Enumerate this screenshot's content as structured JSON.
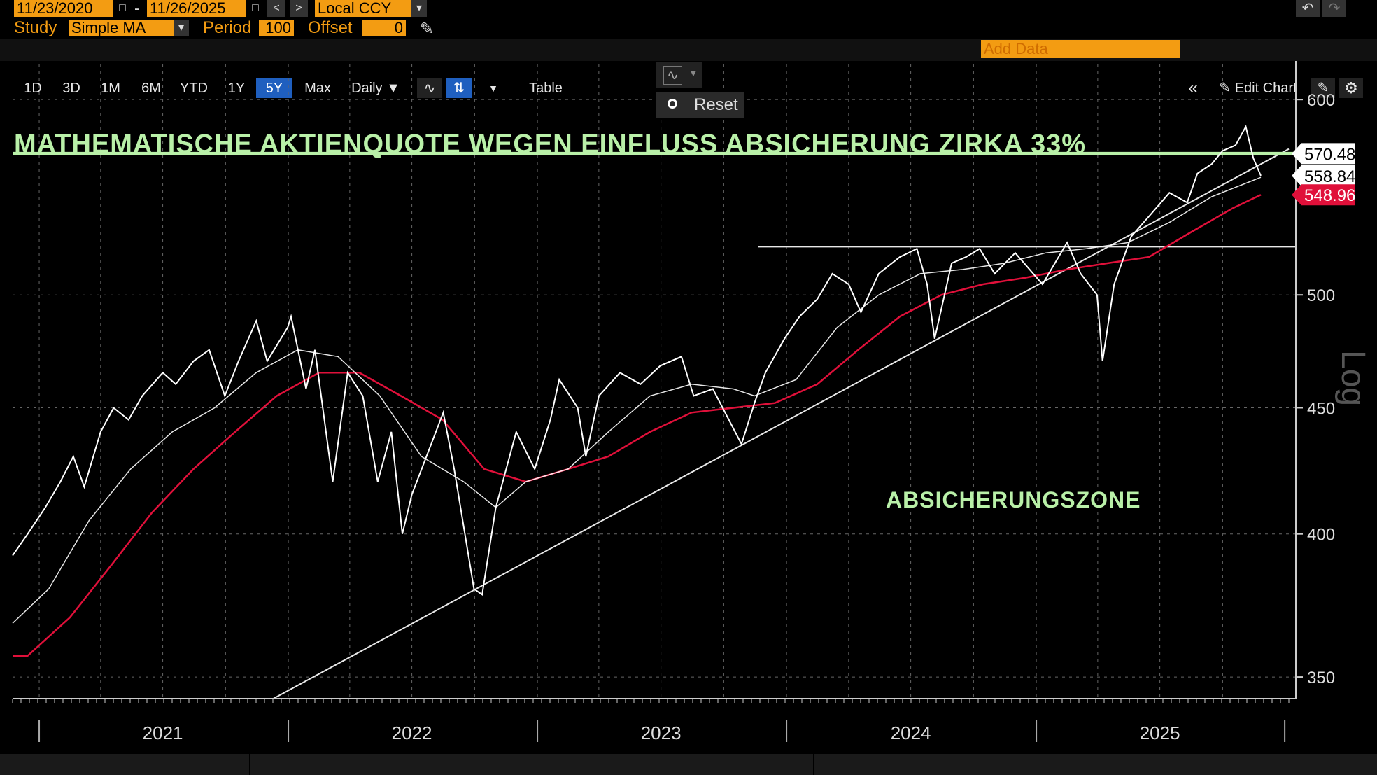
{
  "toolbar_row1": {
    "start_date": "11/23/2020",
    "separator": "-",
    "end_date": "11/26/2025",
    "prev_label": "<",
    "next_label": ">",
    "currency": "Local CCY"
  },
  "toolbar_row2": {
    "study_label": "Study",
    "study_value": "Simple MA",
    "period_label": "Period",
    "period_value": "100",
    "offset_label": "Offset",
    "offset_value": "0"
  },
  "toolbar_row3": {
    "ranges": [
      "1D",
      "3D",
      "1M",
      "6M",
      "YTD",
      "1Y",
      "5Y",
      "Max"
    ],
    "active_range": "5Y",
    "frequency": "Daily",
    "table_label": "Table",
    "add_data_placeholder": "Add Data",
    "edit_chart_label": "Edit Chart"
  },
  "chart_overlay": {
    "reset_label": "Reset",
    "headline": "MATHEMATISCHE AKTIENQUOTE WEGEN EINFLUSS ABSICHERUNG ZIRKA 33%",
    "zone_label": "ABSICHERUNGSZONE",
    "scale_label": "Log"
  },
  "colors": {
    "price": "#ffffff",
    "ma_100": "#ffffff",
    "ma_red": "#e0103a",
    "headline": "#b9f0a8",
    "orange": "#f39c12",
    "active_blue": "#1f5fbf"
  },
  "chart_data": {
    "type": "line",
    "scale": "log",
    "ylim": [
      343,
      620
    ],
    "y_ticks": [
      350,
      400,
      450,
      500,
      600
    ],
    "x_range": [
      "2020-11-23",
      "2025-11-26"
    ],
    "x_ticks": [
      "2021",
      "2022",
      "2023",
      "2024",
      "2025"
    ],
    "last_values": [
      {
        "value": "570.48",
        "color": "#ffffff"
      },
      {
        "value": "558.84",
        "color": "#ffffff"
      },
      {
        "value": "548.96",
        "color": "#e0103a"
      }
    ],
    "price": [
      [
        "2020-11-23",
        392
      ],
      [
        "2020-12-15",
        400
      ],
      [
        "2021-01-10",
        410
      ],
      [
        "2021-02-01",
        420
      ],
      [
        "2021-02-20",
        430
      ],
      [
        "2021-03-08",
        418
      ],
      [
        "2021-04-01",
        440
      ],
      [
        "2021-04-20",
        450
      ],
      [
        "2021-05-12",
        445
      ],
      [
        "2021-06-01",
        455
      ],
      [
        "2021-07-01",
        465
      ],
      [
        "2021-07-20",
        460
      ],
      [
        "2021-08-15",
        470
      ],
      [
        "2021-09-07",
        475
      ],
      [
        "2021-09-30",
        455
      ],
      [
        "2021-10-20",
        470
      ],
      [
        "2021-11-15",
        488
      ],
      [
        "2021-12-01",
        470
      ],
      [
        "2021-12-31",
        485
      ],
      [
        "2022-01-05",
        490
      ],
      [
        "2022-01-27",
        458
      ],
      [
        "2022-02-09",
        475
      ],
      [
        "2022-03-07",
        420
      ],
      [
        "2022-03-29",
        465
      ],
      [
        "2022-04-20",
        455
      ],
      [
        "2022-05-12",
        420
      ],
      [
        "2022-06-01",
        440
      ],
      [
        "2022-06-17",
        400
      ],
      [
        "2022-07-01",
        415
      ],
      [
        "2022-08-16",
        448
      ],
      [
        "2022-09-01",
        425
      ],
      [
        "2022-09-30",
        380
      ],
      [
        "2022-10-12",
        378
      ],
      [
        "2022-11-01",
        410
      ],
      [
        "2022-12-01",
        440
      ],
      [
        "2022-12-28",
        425
      ],
      [
        "2023-01-20",
        445
      ],
      [
        "2023-02-02",
        462
      ],
      [
        "2023-03-01",
        450
      ],
      [
        "2023-03-13",
        430
      ],
      [
        "2023-04-01",
        455
      ],
      [
        "2023-05-02",
        465
      ],
      [
        "2023-06-01",
        460
      ],
      [
        "2023-06-30",
        468
      ],
      [
        "2023-07-31",
        472
      ],
      [
        "2023-08-18",
        455
      ],
      [
        "2023-09-15",
        458
      ],
      [
        "2023-10-27",
        435
      ],
      [
        "2023-11-15",
        452
      ],
      [
        "2023-12-01",
        465
      ],
      [
        "2023-12-29",
        480
      ],
      [
        "2024-01-20",
        490
      ],
      [
        "2024-02-15",
        498
      ],
      [
        "2024-03-08",
        510
      ],
      [
        "2024-04-01",
        505
      ],
      [
        "2024-04-19",
        492
      ],
      [
        "2024-05-15",
        510
      ],
      [
        "2024-06-15",
        518
      ],
      [
        "2024-07-10",
        522
      ],
      [
        "2024-07-25",
        505
      ],
      [
        "2024-08-05",
        480
      ],
      [
        "2024-08-30",
        515
      ],
      [
        "2024-09-20",
        518
      ],
      [
        "2024-10-10",
        522
      ],
      [
        "2024-11-01",
        510
      ],
      [
        "2024-12-01",
        520
      ],
      [
        "2025-01-10",
        505
      ],
      [
        "2025-02-15",
        525
      ],
      [
        "2025-03-07",
        510
      ],
      [
        "2025-03-31",
        500
      ],
      [
        "2025-04-08",
        470
      ],
      [
        "2025-04-25",
        505
      ],
      [
        "2025-05-20",
        528
      ],
      [
        "2025-06-15",
        538
      ],
      [
        "2025-07-15",
        550
      ],
      [
        "2025-08-10",
        545
      ],
      [
        "2025-08-25",
        560
      ],
      [
        "2025-09-15",
        565
      ],
      [
        "2025-10-01",
        572
      ],
      [
        "2025-10-20",
        575
      ],
      [
        "2025-11-04",
        585
      ],
      [
        "2025-11-15",
        568
      ],
      [
        "2025-11-26",
        558.84
      ]
    ],
    "ma_white": [
      [
        "2020-11-23",
        368
      ],
      [
        "2021-01-15",
        380
      ],
      [
        "2021-03-15",
        405
      ],
      [
        "2021-05-15",
        425
      ],
      [
        "2021-07-15",
        440
      ],
      [
        "2021-09-15",
        450
      ],
      [
        "2021-11-15",
        465
      ],
      [
        "2022-01-15",
        475
      ],
      [
        "2022-03-15",
        472
      ],
      [
        "2022-05-15",
        455
      ],
      [
        "2022-07-15",
        430
      ],
      [
        "2022-09-15",
        420
      ],
      [
        "2022-11-01",
        410
      ],
      [
        "2022-12-15",
        420
      ],
      [
        "2023-02-15",
        425
      ],
      [
        "2023-04-15",
        440
      ],
      [
        "2023-06-15",
        455
      ],
      [
        "2023-08-15",
        460
      ],
      [
        "2023-10-15",
        458
      ],
      [
        "2023-11-15",
        455
      ],
      [
        "2024-01-15",
        462
      ],
      [
        "2024-03-15",
        485
      ],
      [
        "2024-05-15",
        500
      ],
      [
        "2024-07-15",
        510
      ],
      [
        "2024-09-15",
        512
      ],
      [
        "2024-11-15",
        515
      ],
      [
        "2025-01-15",
        520
      ],
      [
        "2025-03-15",
        522
      ],
      [
        "2025-05-15",
        525
      ],
      [
        "2025-07-15",
        535
      ],
      [
        "2025-09-15",
        548
      ],
      [
        "2025-11-26",
        558
      ]
    ],
    "ma_red": [
      [
        "2020-11-23",
        357
      ],
      [
        "2020-12-15",
        357
      ],
      [
        "2021-02-15",
        370
      ],
      [
        "2021-04-15",
        388
      ],
      [
        "2021-06-15",
        408
      ],
      [
        "2021-08-15",
        425
      ],
      [
        "2021-10-15",
        440
      ],
      [
        "2021-12-15",
        455
      ],
      [
        "2022-02-15",
        465
      ],
      [
        "2022-04-15",
        465
      ],
      [
        "2022-06-15",
        455
      ],
      [
        "2022-08-15",
        445
      ],
      [
        "2022-10-15",
        425
      ],
      [
        "2022-12-15",
        420
      ],
      [
        "2023-02-15",
        425
      ],
      [
        "2023-04-15",
        430
      ],
      [
        "2023-06-15",
        440
      ],
      [
        "2023-08-15",
        448
      ],
      [
        "2023-10-15",
        450
      ],
      [
        "2023-12-15",
        452
      ],
      [
        "2024-02-15",
        460
      ],
      [
        "2024-04-15",
        475
      ],
      [
        "2024-06-15",
        490
      ],
      [
        "2024-08-15",
        500
      ],
      [
        "2024-10-15",
        505
      ],
      [
        "2024-12-15",
        508
      ],
      [
        "2025-02-15",
        512
      ],
      [
        "2025-04-15",
        515
      ],
      [
        "2025-06-15",
        518
      ],
      [
        "2025-08-15",
        530
      ],
      [
        "2025-10-15",
        542
      ],
      [
        "2025-11-26",
        548.96
      ]
    ],
    "trendline": [
      [
        "2021-12-10",
        343
      ],
      [
        "2025-11-26",
        570
      ]
    ],
    "resistance_line": {
      "from": "2023-11-20",
      "to": "2025-11-26",
      "value": 523
    },
    "headline_line": {
      "value": 570.48
    }
  }
}
